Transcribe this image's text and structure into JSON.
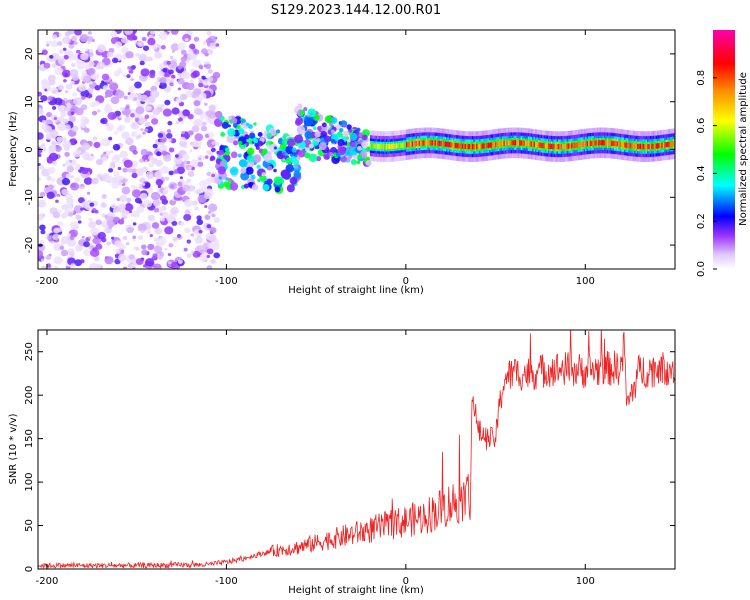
{
  "title": "S129.2023.144.12.00.R01",
  "chart_data": [
    {
      "type": "heatmap",
      "xlabel": "Height of straight line (km)",
      "ylabel": "Frequency (Hz)",
      "xlim": [
        -205,
        150
      ],
      "ylim": [
        -25,
        25
      ],
      "xticks": [
        -200,
        -100,
        0,
        100
      ],
      "yticks": [
        -20,
        -10,
        0,
        10,
        20
      ],
      "colorbar": {
        "label": "Normalized spectral amplitude",
        "range": [
          0,
          1
        ],
        "ticks": [
          "0.0",
          "0.2",
          "0.4",
          "0.6",
          "0.8"
        ],
        "colormap": [
          "#ffffff",
          "#9933ff",
          "#0000ff",
          "#00ffff",
          "#00ff00",
          "#ffff00",
          "#ff8800",
          "#ff0000",
          "#ff00aa"
        ]
      },
      "features": [
        {
          "x_range": [
            -205,
            -105
          ],
          "description_values": {
            "freq_range": [
              -25,
              25
            ],
            "amplitude": 0.15
          }
        },
        {
          "x_range": [
            -105,
            -20
          ],
          "description_values": {
            "freq_center": 0,
            "freq_spread": 8,
            "amplitude": 0.35
          }
        },
        {
          "x_range": [
            -20,
            150
          ],
          "description_values": {
            "freq_center": 1,
            "freq_spread": 1.5,
            "amplitude": 0.8
          }
        }
      ]
    },
    {
      "type": "line",
      "xlabel": "Height of straight line (km)",
      "ylabel": "SNR (10 * v/v)",
      "xlim": [
        -205,
        150
      ],
      "ylim": [
        0,
        275
      ],
      "xticks": [
        -200,
        -100,
        0,
        100
      ],
      "yticks": [
        0,
        50,
        100,
        150,
        200,
        250
      ],
      "series": [
        {
          "color": "#ee2222",
          "x": [
            -205,
            -150,
            -110,
            -100,
            -90,
            -80,
            -70,
            -60,
            -50,
            -40,
            -30,
            -20,
            -10,
            0,
            10,
            20,
            30,
            36,
            37,
            40,
            45,
            50,
            52,
            55,
            60,
            70,
            80,
            90,
            100,
            110,
            120,
            122,
            123,
            130,
            140,
            150
          ],
          "y": [
            4,
            4,
            5,
            8,
            12,
            18,
            22,
            25,
            30,
            35,
            40,
            45,
            50,
            55,
            60,
            70,
            80,
            85,
            205,
            160,
            150,
            150,
            185,
            220,
            225,
            225,
            230,
            230,
            228,
            230,
            232,
            260,
            185,
            228,
            230,
            232
          ]
        }
      ]
    }
  ]
}
